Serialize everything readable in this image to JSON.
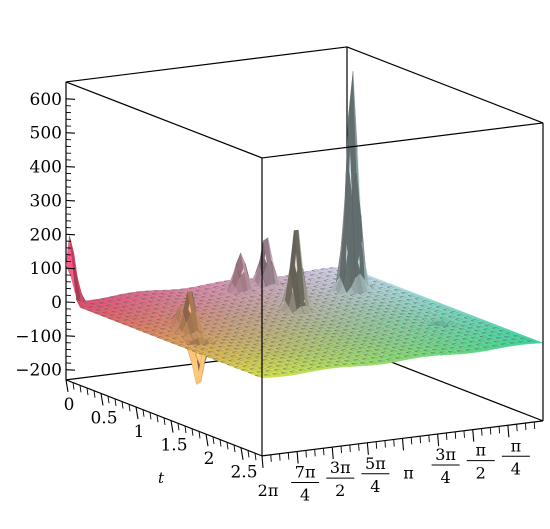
{
  "chart_data": {
    "type": "surface3d",
    "title": "",
    "axes": {
      "z": {
        "label": "",
        "range": [
          -230,
          650
        ],
        "tick_labels": [
          "600",
          "500",
          "400",
          "300",
          "200",
          "100",
          "0",
          "−100",
          "−200"
        ],
        "tick_values": [
          600,
          500,
          400,
          300,
          200,
          100,
          0,
          -100,
          -200
        ]
      },
      "t": {
        "label": "t",
        "range": [
          0,
          2.8
        ],
        "tick_labels": [
          "0",
          "0.5",
          "1",
          "1.5",
          "2",
          "2.5"
        ],
        "tick_values": [
          0,
          0.5,
          1,
          1.5,
          2,
          2.5
        ]
      },
      "x": {
        "label": "",
        "range": [
          0,
          6.2832
        ],
        "tick_values": [
          6.2832,
          5.4978,
          4.7124,
          3.927,
          3.1416,
          2.3562,
          1.5708,
          0.7854
        ],
        "tick_labels": [
          {
            "num": "2π",
            "den": ""
          },
          {
            "num": "7π",
            "den": "4"
          },
          {
            "num": "3π",
            "den": "2"
          },
          {
            "num": "5π",
            "den": "4"
          },
          {
            "num": "π",
            "den": ""
          },
          {
            "num": "3π",
            "den": "4"
          },
          {
            "num": "π",
            "den": "2"
          },
          {
            "num": "π",
            "den": "4"
          }
        ]
      }
    },
    "surface_baseline": 0,
    "peaks": [
      {
        "t": 0.05,
        "x": 6.28,
        "z": 200
      },
      {
        "t": 1.05,
        "x": 5.35,
        "z": 60
      },
      {
        "t": 1.3,
        "x": 5.55,
        "z": 130
      },
      {
        "t": 1.55,
        "x": 5.75,
        "z": -140
      },
      {
        "t": 0.3,
        "x": 2.85,
        "z": 110
      },
      {
        "t": 0.25,
        "x": 2.2,
        "z": 150
      },
      {
        "t": 1.0,
        "x": 2.7,
        "z": 255
      },
      {
        "t": 0.65,
        "x": 0.9,
        "z": 650
      },
      {
        "t": 1.85,
        "x": 0.8,
        "z": -100
      }
    ],
    "grid": true,
    "legend": "none",
    "colors": {
      "box": "#000000",
      "mesh": "#505050",
      "near_t0_high_x": "#e0446e",
      "near_t0_low_x": "#cfd8ee",
      "far_high_x": "#d8e24a",
      "far_low_x": "#37d39c"
    }
  }
}
